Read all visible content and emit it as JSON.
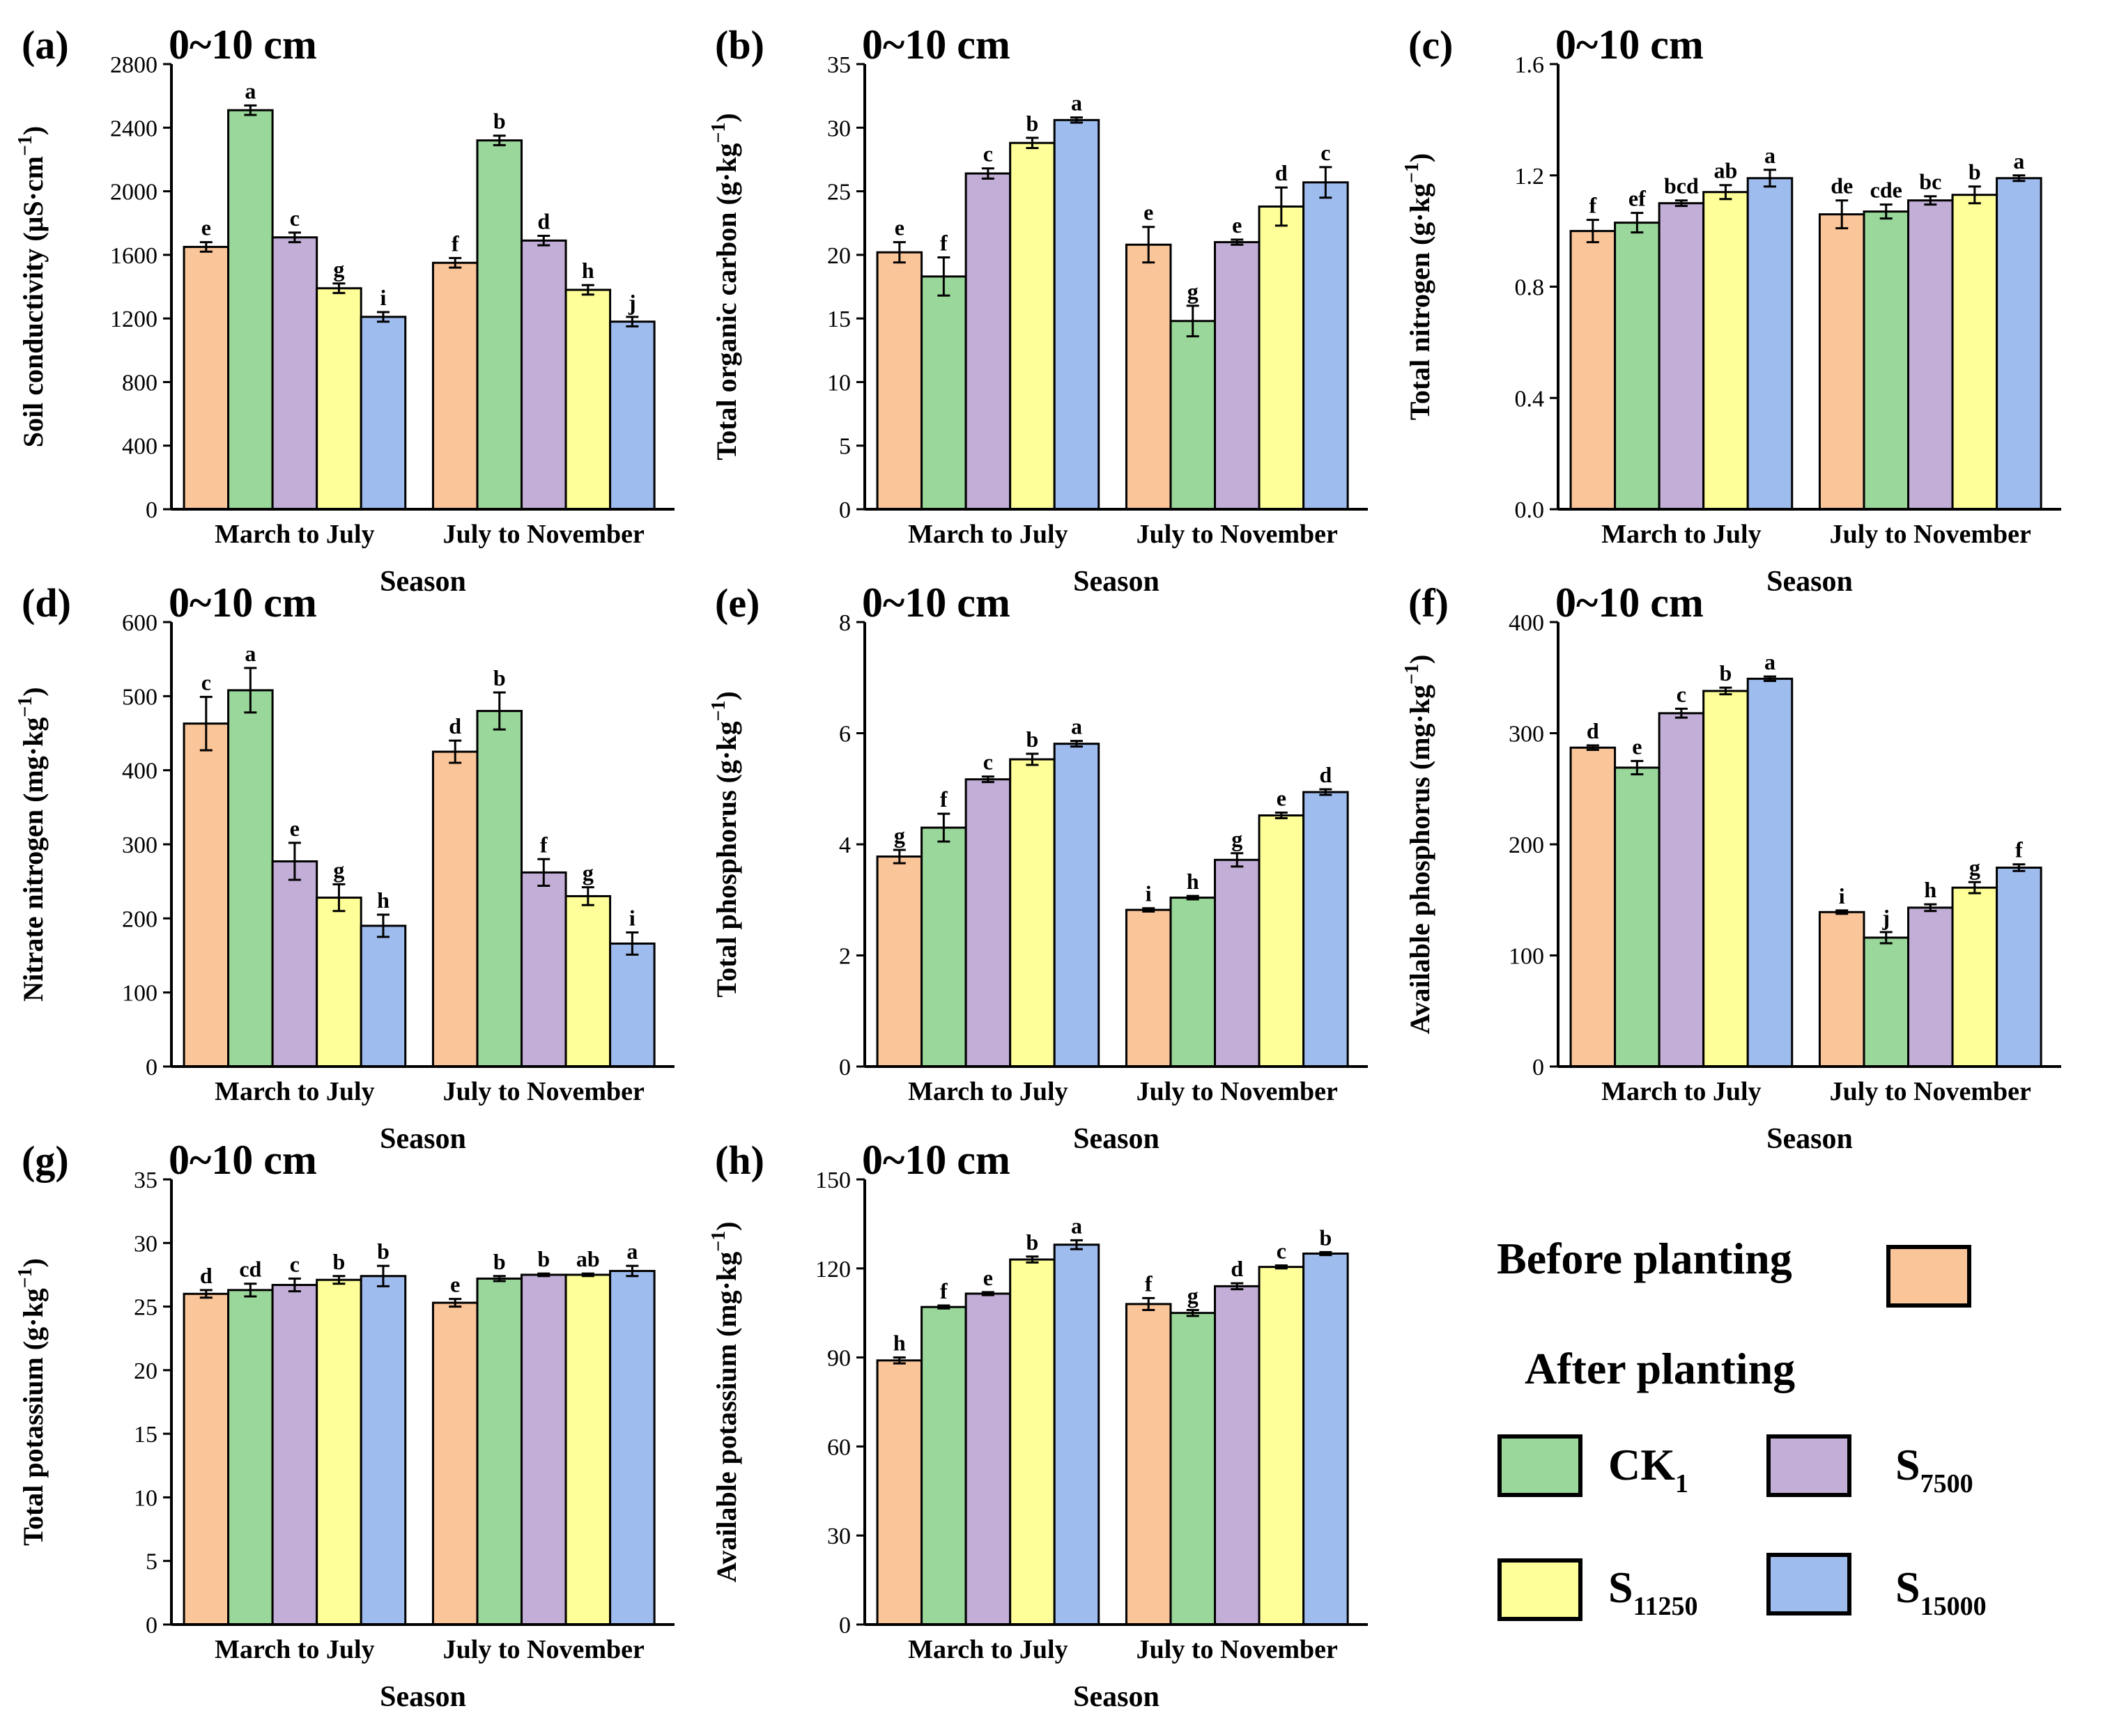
{
  "legend": {
    "before_label": "Before planting",
    "after_label": "After planting",
    "entries": [
      {
        "key": "before",
        "name": "Before planting",
        "color": "#fbc59a"
      },
      {
        "key": "ck1",
        "name": "CK",
        "sub": "1",
        "color": "#9ad79a"
      },
      {
        "key": "s7500",
        "name": "S",
        "sub": "7500",
        "color": "#c2aed6"
      },
      {
        "key": "s11250",
        "name": "S",
        "sub": "11250",
        "color": "#ffff99"
      },
      {
        "key": "s15000",
        "name": "S",
        "sub": "15000",
        "color": "#9fbcef"
      }
    ]
  },
  "chart_data": [
    {
      "type": "bar",
      "panel": "(a)",
      "depth": "0~10 cm",
      "title": "(a) 0~10 cm",
      "xlabel": "Season",
      "ylabel": "Soil conductivity (μS·cm⁻¹)",
      "ylabel_main": "Soil conductivity (μS·cm",
      "ylabel_sup": "−1",
      "ylabel_end": ")",
      "ylim": [
        0,
        2800
      ],
      "yticks": [
        0,
        400,
        800,
        1200,
        1600,
        2000,
        2400,
        2800
      ],
      "ytick_labels": [
        "0",
        "400",
        "800",
        "1200",
        "1600",
        "2000",
        "2400",
        "2800"
      ],
      "categories": [
        "March to July",
        "July to November"
      ],
      "series": [
        {
          "name": "Before planting",
          "values": [
            1650,
            1550
          ],
          "errors": [
            30,
            30
          ],
          "letters": [
            "e",
            "f"
          ]
        },
        {
          "name": "CK1",
          "values": [
            2510,
            2320
          ],
          "errors": [
            30,
            30
          ],
          "letters": [
            "a",
            "b"
          ]
        },
        {
          "name": "S7500",
          "values": [
            1710,
            1690
          ],
          "errors": [
            30,
            30
          ],
          "letters": [
            "c",
            "d"
          ]
        },
        {
          "name": "S11250",
          "values": [
            1390,
            1380
          ],
          "errors": [
            30,
            30
          ],
          "letters": [
            "g",
            "h"
          ]
        },
        {
          "name": "S15000",
          "values": [
            1210,
            1180
          ],
          "errors": [
            30,
            30
          ],
          "letters": [
            "i",
            "j"
          ]
        }
      ]
    },
    {
      "type": "bar",
      "panel": "(b)",
      "depth": "0~10 cm",
      "title": "(b) 0~10 cm",
      "xlabel": "Season",
      "ylabel": "Total organic carbon (g·kg⁻¹)",
      "ylabel_main": "Total organic carbon (g·kg",
      "ylabel_sup": "−1",
      "ylabel_end": ")",
      "ylim": [
        0,
        35
      ],
      "yticks": [
        0,
        5,
        10,
        15,
        20,
        25,
        30,
        35
      ],
      "ytick_labels": [
        "0",
        "5",
        "10",
        "15",
        "20",
        "25",
        "30",
        "35"
      ],
      "categories": [
        "March to July",
        "July to November"
      ],
      "series": [
        {
          "name": "Before planting",
          "values": [
            20.2,
            20.8
          ],
          "errors": [
            0.8,
            1.4
          ],
          "letters": [
            "e",
            "e"
          ]
        },
        {
          "name": "CK1",
          "values": [
            18.3,
            14.8
          ],
          "errors": [
            1.5,
            1.2
          ],
          "letters": [
            "f",
            "g"
          ]
        },
        {
          "name": "S7500",
          "values": [
            26.4,
            21.0
          ],
          "errors": [
            0.4,
            0.2
          ],
          "letters": [
            "c",
            "e"
          ]
        },
        {
          "name": "S11250",
          "values": [
            28.8,
            23.8
          ],
          "errors": [
            0.4,
            1.5
          ],
          "letters": [
            "b",
            "d"
          ]
        },
        {
          "name": "S15000",
          "values": [
            30.6,
            25.7
          ],
          "errors": [
            0.2,
            1.2
          ],
          "letters": [
            "a",
            "c"
          ]
        }
      ]
    },
    {
      "type": "bar",
      "panel": "(c)",
      "depth": "0~10 cm",
      "title": "(c) 0~10 cm",
      "xlabel": "Season",
      "ylabel": "Total nitrogen (g·kg⁻¹)",
      "ylabel_main": "Total nitrogen (g·kg",
      "ylabel_sup": "−1",
      "ylabel_end": ")",
      "ylim": [
        0,
        1.6
      ],
      "yticks": [
        0,
        0.4,
        0.8,
        1.2,
        1.6
      ],
      "ytick_labels": [
        "0.0",
        "0.4",
        "0.8",
        "1.2",
        "1.6"
      ],
      "categories": [
        "March to July",
        "July to November"
      ],
      "series": [
        {
          "name": "Before planting",
          "values": [
            1.0,
            1.06
          ],
          "errors": [
            0.04,
            0.05
          ],
          "letters": [
            "f",
            "de"
          ]
        },
        {
          "name": "CK1",
          "values": [
            1.03,
            1.07
          ],
          "errors": [
            0.035,
            0.025
          ],
          "letters": [
            "ef",
            "cde"
          ]
        },
        {
          "name": "S7500",
          "values": [
            1.1,
            1.11
          ],
          "errors": [
            0.01,
            0.015
          ],
          "letters": [
            "bcd",
            "bc"
          ]
        },
        {
          "name": "S11250",
          "values": [
            1.14,
            1.13
          ],
          "errors": [
            0.025,
            0.03
          ],
          "letters": [
            "ab",
            "b"
          ]
        },
        {
          "name": "S15000",
          "values": [
            1.19,
            1.19
          ],
          "errors": [
            0.03,
            0.01
          ],
          "letters": [
            "a",
            "a"
          ]
        }
      ]
    },
    {
      "type": "bar",
      "panel": "(d)",
      "depth": "0~10 cm",
      "title": "(d) 0~10 cm",
      "xlabel": "Season",
      "ylabel": "Nitrate nitrogen (mg·kg⁻¹)",
      "ylabel_main": "Nitrate nitrogen (mg·kg",
      "ylabel_sup": "−1",
      "ylabel_end": ")",
      "ylim": [
        0,
        600
      ],
      "yticks": [
        0,
        100,
        200,
        300,
        400,
        500,
        600
      ],
      "ytick_labels": [
        "0",
        "100",
        "200",
        "300",
        "400",
        "500",
        "600"
      ],
      "categories": [
        "March to July",
        "July to November"
      ],
      "series": [
        {
          "name": "Before planting",
          "values": [
            463,
            425
          ],
          "errors": [
            36,
            15
          ],
          "letters": [
            "c",
            "d"
          ]
        },
        {
          "name": "CK1",
          "values": [
            508,
            480
          ],
          "errors": [
            30,
            25
          ],
          "letters": [
            "a",
            "b"
          ]
        },
        {
          "name": "S7500",
          "values": [
            277,
            262
          ],
          "errors": [
            25,
            18
          ],
          "letters": [
            "e",
            "f"
          ]
        },
        {
          "name": "S11250",
          "values": [
            228,
            230
          ],
          "errors": [
            18,
            12
          ],
          "letters": [
            "g",
            "g"
          ]
        },
        {
          "name": "S15000",
          "values": [
            190,
            166
          ],
          "errors": [
            15,
            15
          ],
          "letters": [
            "h",
            "i"
          ]
        }
      ]
    },
    {
      "type": "bar",
      "panel": "(e)",
      "depth": "0~10 cm",
      "title": "(e) 0~10 cm",
      "xlabel": "Season",
      "ylabel": "Total phosphorus (g·kg⁻¹)",
      "ylabel_main": "Total phosphorus (g·kg",
      "ylabel_sup": "−1",
      "ylabel_end": ")",
      "ylim": [
        0,
        8
      ],
      "yticks": [
        0,
        2,
        4,
        6,
        8
      ],
      "ytick_labels": [
        "0",
        "2",
        "4",
        "6",
        "8"
      ],
      "categories": [
        "March to July",
        "July to November"
      ],
      "series": [
        {
          "name": "Before planting",
          "values": [
            3.78,
            2.82
          ],
          "errors": [
            0.12,
            0.03
          ],
          "letters": [
            "g",
            "i"
          ]
        },
        {
          "name": "CK1",
          "values": [
            4.3,
            3.04
          ],
          "errors": [
            0.25,
            0.03
          ],
          "letters": [
            "f",
            "h"
          ]
        },
        {
          "name": "S7500",
          "values": [
            5.17,
            3.72
          ],
          "errors": [
            0.05,
            0.12
          ],
          "letters": [
            "c",
            "g"
          ]
        },
        {
          "name": "S11250",
          "values": [
            5.53,
            4.52
          ],
          "errors": [
            0.1,
            0.05
          ],
          "letters": [
            "b",
            "e"
          ]
        },
        {
          "name": "S15000",
          "values": [
            5.81,
            4.94
          ],
          "errors": [
            0.05,
            0.05
          ],
          "letters": [
            "a",
            "d"
          ]
        }
      ]
    },
    {
      "type": "bar",
      "panel": "(f)",
      "depth": "0~10 cm",
      "title": "(f) 0~10 cm",
      "xlabel": "Season",
      "ylabel": "Available phosphorus (mg·kg⁻¹)",
      "ylabel_main": "Available phosphorus (mg·kg",
      "ylabel_sup": "−1",
      "ylabel_end": ")",
      "ylim": [
        0,
        400
      ],
      "yticks": [
        0,
        100,
        200,
        300,
        400
      ],
      "ytick_labels": [
        "0",
        "100",
        "200",
        "300",
        "400"
      ],
      "categories": [
        "March to July",
        "July to November"
      ],
      "series": [
        {
          "name": "Before planting",
          "values": [
            287,
            139
          ],
          "errors": [
            2,
            1.5
          ],
          "letters": [
            "d",
            "i"
          ]
        },
        {
          "name": "CK1",
          "values": [
            269,
            116
          ],
          "errors": [
            6,
            5
          ],
          "letters": [
            "e",
            "j"
          ]
        },
        {
          "name": "S7500",
          "values": [
            318,
            143
          ],
          "errors": [
            4,
            3
          ],
          "letters": [
            "c",
            "h"
          ]
        },
        {
          "name": "S11250",
          "values": [
            338,
            161
          ],
          "errors": [
            3,
            5
          ],
          "letters": [
            "b",
            "g"
          ]
        },
        {
          "name": "S15000",
          "values": [
            349,
            179
          ],
          "errors": [
            2,
            3
          ],
          "letters": [
            "a",
            "f"
          ]
        }
      ]
    },
    {
      "type": "bar",
      "panel": "(g)",
      "depth": "0~10 cm",
      "title": "(g) 0~10 cm",
      "xlabel": "Season",
      "ylabel": "Total potassium (g·kg⁻¹)",
      "ylabel_main": "Total potassium (g·kg",
      "ylabel_sup": "−1",
      "ylabel_end": ")",
      "ylim": [
        0,
        35
      ],
      "yticks": [
        0,
        5,
        10,
        15,
        20,
        25,
        30,
        35
      ],
      "ytick_labels": [
        "0",
        "5",
        "10",
        "15",
        "20",
        "25",
        "30",
        "35"
      ],
      "categories": [
        "March to July",
        "July to November"
      ],
      "series": [
        {
          "name": "Before planting",
          "values": [
            26.0,
            25.3
          ],
          "errors": [
            0.3,
            0.3
          ],
          "letters": [
            "d",
            "e"
          ]
        },
        {
          "name": "CK1",
          "values": [
            26.3,
            27.2
          ],
          "errors": [
            0.5,
            0.2
          ],
          "letters": [
            "cd",
            "b"
          ]
        },
        {
          "name": "S7500",
          "values": [
            26.7,
            27.5
          ],
          "errors": [
            0.5,
            0.1
          ],
          "letters": [
            "c",
            "b"
          ]
        },
        {
          "name": "S11250",
          "values": [
            27.1,
            27.5
          ],
          "errors": [
            0.3,
            0.1
          ],
          "letters": [
            "b",
            "ab"
          ]
        },
        {
          "name": "S15000",
          "values": [
            27.4,
            27.8
          ],
          "errors": [
            0.8,
            0.4
          ],
          "letters": [
            "b",
            "a"
          ]
        }
      ]
    },
    {
      "type": "bar",
      "panel": "(h)",
      "depth": "0~10 cm",
      "title": "(h) 0~10 cm",
      "xlabel": "Season",
      "ylabel": "Available potassium (mg·kg⁻¹)",
      "ylabel_main": "Available potassium (mg·kg",
      "ylabel_sup": "−1",
      "ylabel_end": ")",
      "ylim": [
        0,
        150
      ],
      "yticks": [
        0,
        30,
        60,
        90,
        120,
        150
      ],
      "ytick_labels": [
        "0",
        "30",
        "60",
        "90",
        "120",
        "150"
      ],
      "categories": [
        "March to July",
        "July to November"
      ],
      "series": [
        {
          "name": "Before planting",
          "values": [
            89,
            108
          ],
          "errors": [
            1,
            2
          ],
          "letters": [
            "h",
            "f"
          ]
        },
        {
          "name": "CK1",
          "values": [
            107,
            105
          ],
          "errors": [
            0.5,
            1
          ],
          "letters": [
            "f",
            "g"
          ]
        },
        {
          "name": "S7500",
          "values": [
            111.5,
            114
          ],
          "errors": [
            0.5,
            1
          ],
          "letters": [
            "e",
            "d"
          ]
        },
        {
          "name": "S11250",
          "values": [
            123,
            120.5
          ],
          "errors": [
            1,
            0.5
          ],
          "letters": [
            "b",
            "c"
          ]
        },
        {
          "name": "S15000",
          "values": [
            128,
            125
          ],
          "errors": [
            1.5,
            0.5
          ],
          "letters": [
            "a",
            "b"
          ]
        }
      ]
    }
  ]
}
